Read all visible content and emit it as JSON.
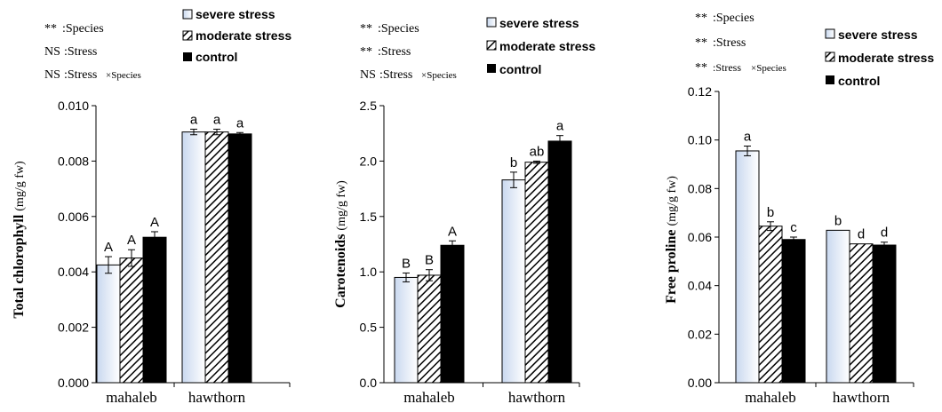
{
  "colors": {
    "severe_fill_top": "#c9d8ef",
    "severe_fill_bottom": "#ffffff",
    "moderate_hatch": "#000000",
    "control_fill": "#000000",
    "axis": "#000000"
  },
  "chart_data": [
    {
      "type": "bar",
      "ylabel": "Total chlorophyll",
      "ylabel_unit": "(mg/g fw)",
      "ylim": [
        0,
        0.01
      ],
      "yticks": [
        "0.000",
        "0.002",
        "0.004",
        "0.006",
        "0.008",
        "0.010"
      ],
      "categories": [
        "mahaleb",
        "hawthorn"
      ],
      "series": [
        {
          "name": "severe stress",
          "values": [
            0.00425,
            0.00905
          ],
          "errors": [
            0.0003,
            0.0001
          ],
          "labels": [
            "A",
            "a"
          ]
        },
        {
          "name": "moderate stress",
          "values": [
            0.0045,
            0.00905
          ],
          "errors": [
            0.0003,
            0.0001
          ],
          "labels": [
            "A",
            "a"
          ]
        },
        {
          "name": "control",
          "values": [
            0.00525,
            0.00898
          ],
          "errors": [
            0.0002,
            5e-05
          ],
          "labels": [
            "A",
            "a"
          ]
        }
      ],
      "stats": [
        {
          "sig": "**",
          "factor": ":Species"
        },
        {
          "sig": "NS",
          "factor": ":Stress"
        },
        {
          "sig": "NS",
          "factor": ":Stress",
          "factor_small": "×Species"
        }
      ],
      "legend": [
        "severe stress",
        "moderate stress",
        "control"
      ],
      "legend_position": "top"
    },
    {
      "type": "bar",
      "ylabel": "Carotenoids",
      "ylabel_unit": "(mg/g fw)",
      "ylim": [
        0,
        2.5
      ],
      "yticks": [
        "0.0",
        "0.5",
        "1.0",
        "1.5",
        "2.0",
        "2.5"
      ],
      "categories": [
        "mahaleb",
        "hawthorn"
      ],
      "series": [
        {
          "name": "severe stress",
          "values": [
            0.95,
            1.83
          ],
          "errors": [
            0.04,
            0.07
          ],
          "labels": [
            "B",
            "b"
          ]
        },
        {
          "name": "moderate stress",
          "values": [
            0.97,
            1.99
          ],
          "errors": [
            0.05,
            0.01
          ],
          "labels": [
            "B",
            "ab"
          ]
        },
        {
          "name": "control",
          "values": [
            1.24,
            2.18
          ],
          "errors": [
            0.04,
            0.05
          ],
          "labels": [
            "A",
            "a"
          ]
        }
      ],
      "stats": [
        {
          "sig": "**",
          "factor": ":Species"
        },
        {
          "sig": "**",
          "factor": ":Stress"
        },
        {
          "sig": "NS",
          "factor": ":Stress",
          "factor_small": "×Species"
        }
      ],
      "legend": [
        "severe stress",
        "moderate stress",
        "control"
      ],
      "legend_position": "top-right"
    },
    {
      "type": "bar",
      "ylabel": "Free proline",
      "ylabel_unit": "(mg/g fw)",
      "ylim": [
        0,
        0.12
      ],
      "yticks": [
        "0.00",
        "0.02",
        "0.04",
        "0.06",
        "0.08",
        "0.10",
        "0.12"
      ],
      "categories": [
        "mahaleb",
        "hawthorn"
      ],
      "series": [
        {
          "name": "severe stress",
          "values": [
            0.0955,
            0.0628
          ],
          "errors": [
            0.002,
            0.0
          ],
          "labels": [
            "a",
            "b"
          ]
        },
        {
          "name": "moderate stress",
          "values": [
            0.0645,
            0.0572
          ],
          "errors": [
            0.0018,
            0.0
          ],
          "labels": [
            "b",
            "d"
          ]
        },
        {
          "name": "control",
          "values": [
            0.059,
            0.0567
          ],
          "errors": [
            0.001,
            0.0012
          ],
          "labels": [
            "c",
            "d"
          ]
        }
      ],
      "stats": [
        {
          "sig": "**",
          "factor": ":Species"
        },
        {
          "sig": "**",
          "factor": ":Stress"
        },
        {
          "sig": "**",
          "factor": ":Stress",
          "factor_small": "×Species"
        }
      ],
      "legend": [
        "severe stress",
        "moderate stress",
        "control"
      ],
      "legend_position": "top-right"
    }
  ]
}
